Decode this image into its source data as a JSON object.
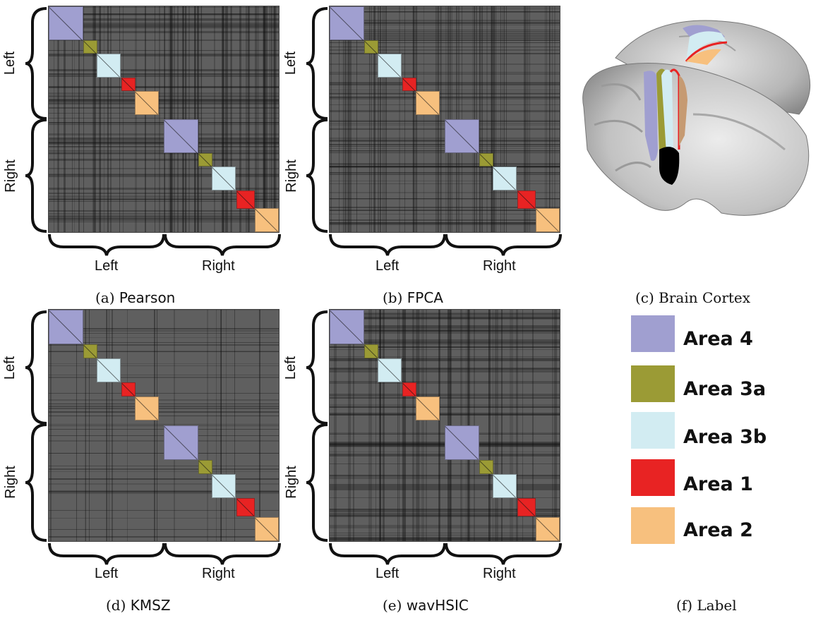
{
  "panels": [
    {
      "id": "a",
      "caption_prefix": "(a)",
      "caption_method": "Pearson",
      "side_top": "Left",
      "side_bottom": "Right",
      "bottom_left": "Left",
      "bottom_right": "Right"
    },
    {
      "id": "b",
      "caption_prefix": "(b)",
      "caption_method": "FPCA",
      "side_top": "Left",
      "side_bottom": "Right",
      "bottom_left": "Left",
      "bottom_right": "Right"
    },
    {
      "id": "d",
      "caption_prefix": "(d)",
      "caption_method": "KMSZ",
      "side_top": "Left",
      "side_bottom": "Right",
      "bottom_left": "Left",
      "bottom_right": "Right"
    },
    {
      "id": "e",
      "caption_prefix": "(e)",
      "caption_method": "wavHSIC",
      "side_top": "Left",
      "side_bottom": "Right",
      "bottom_left": "Left",
      "bottom_right": "Right"
    }
  ],
  "brain": {
    "caption": "(c) Brain Cortex"
  },
  "legend": {
    "caption": "(f) Label",
    "items": [
      {
        "label": "Area 4",
        "color": "#a09fd0"
      },
      {
        "label": "Area 3a",
        "color": "#9b9b35"
      },
      {
        "label": "Area 3b",
        "color": "#d2ecf2"
      },
      {
        "label": "Area 1",
        "color": "#e82323"
      },
      {
        "label": "Area 2",
        "color": "#f7c07e"
      }
    ]
  },
  "colors": {
    "matrix_bg": "#5f5f5f",
    "noise": "#111111"
  }
}
